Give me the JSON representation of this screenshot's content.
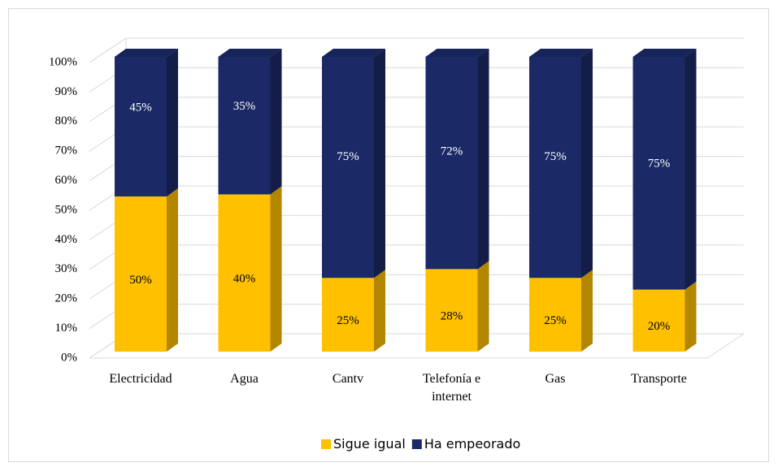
{
  "chart_data": {
    "type": "bar",
    "stacking": "percent",
    "categories": [
      "Electricidad",
      "Agua",
      "Cantv",
      "Telefonía e internet",
      "Gas",
      "Transporte"
    ],
    "series": [
      {
        "name": "Sigue igual",
        "color": "#FFC000",
        "values": [
          50,
          40,
          25,
          28,
          25,
          20
        ],
        "value_labels": [
          "50%",
          "40%",
          "25%",
          "28%",
          "25%",
          "20%"
        ]
      },
      {
        "name": "Ha empeorado",
        "color": "#1B2A66",
        "values": [
          45,
          35,
          75,
          72,
          75,
          75
        ],
        "value_labels": [
          "45%",
          "35%",
          "75%",
          "72%",
          "75%",
          "75%"
        ]
      }
    ],
    "ylim": [
      0,
      100
    ],
    "yticks": [
      {
        "value": 0,
        "label": "0%"
      },
      {
        "value": 10,
        "label": "10%"
      },
      {
        "value": 20,
        "label": "20%"
      },
      {
        "value": 30,
        "label": "30%"
      },
      {
        "value": 40,
        "label": "40%"
      },
      {
        "value": 50,
        "label": "50%"
      },
      {
        "value": 60,
        "label": "60%"
      },
      {
        "value": 70,
        "label": "70%"
      },
      {
        "value": 80,
        "label": "80%"
      },
      {
        "value": 90,
        "label": "90%"
      },
      {
        "value": 100,
        "label": "100%"
      }
    ],
    "grid": true,
    "legend": "bottom"
  }
}
